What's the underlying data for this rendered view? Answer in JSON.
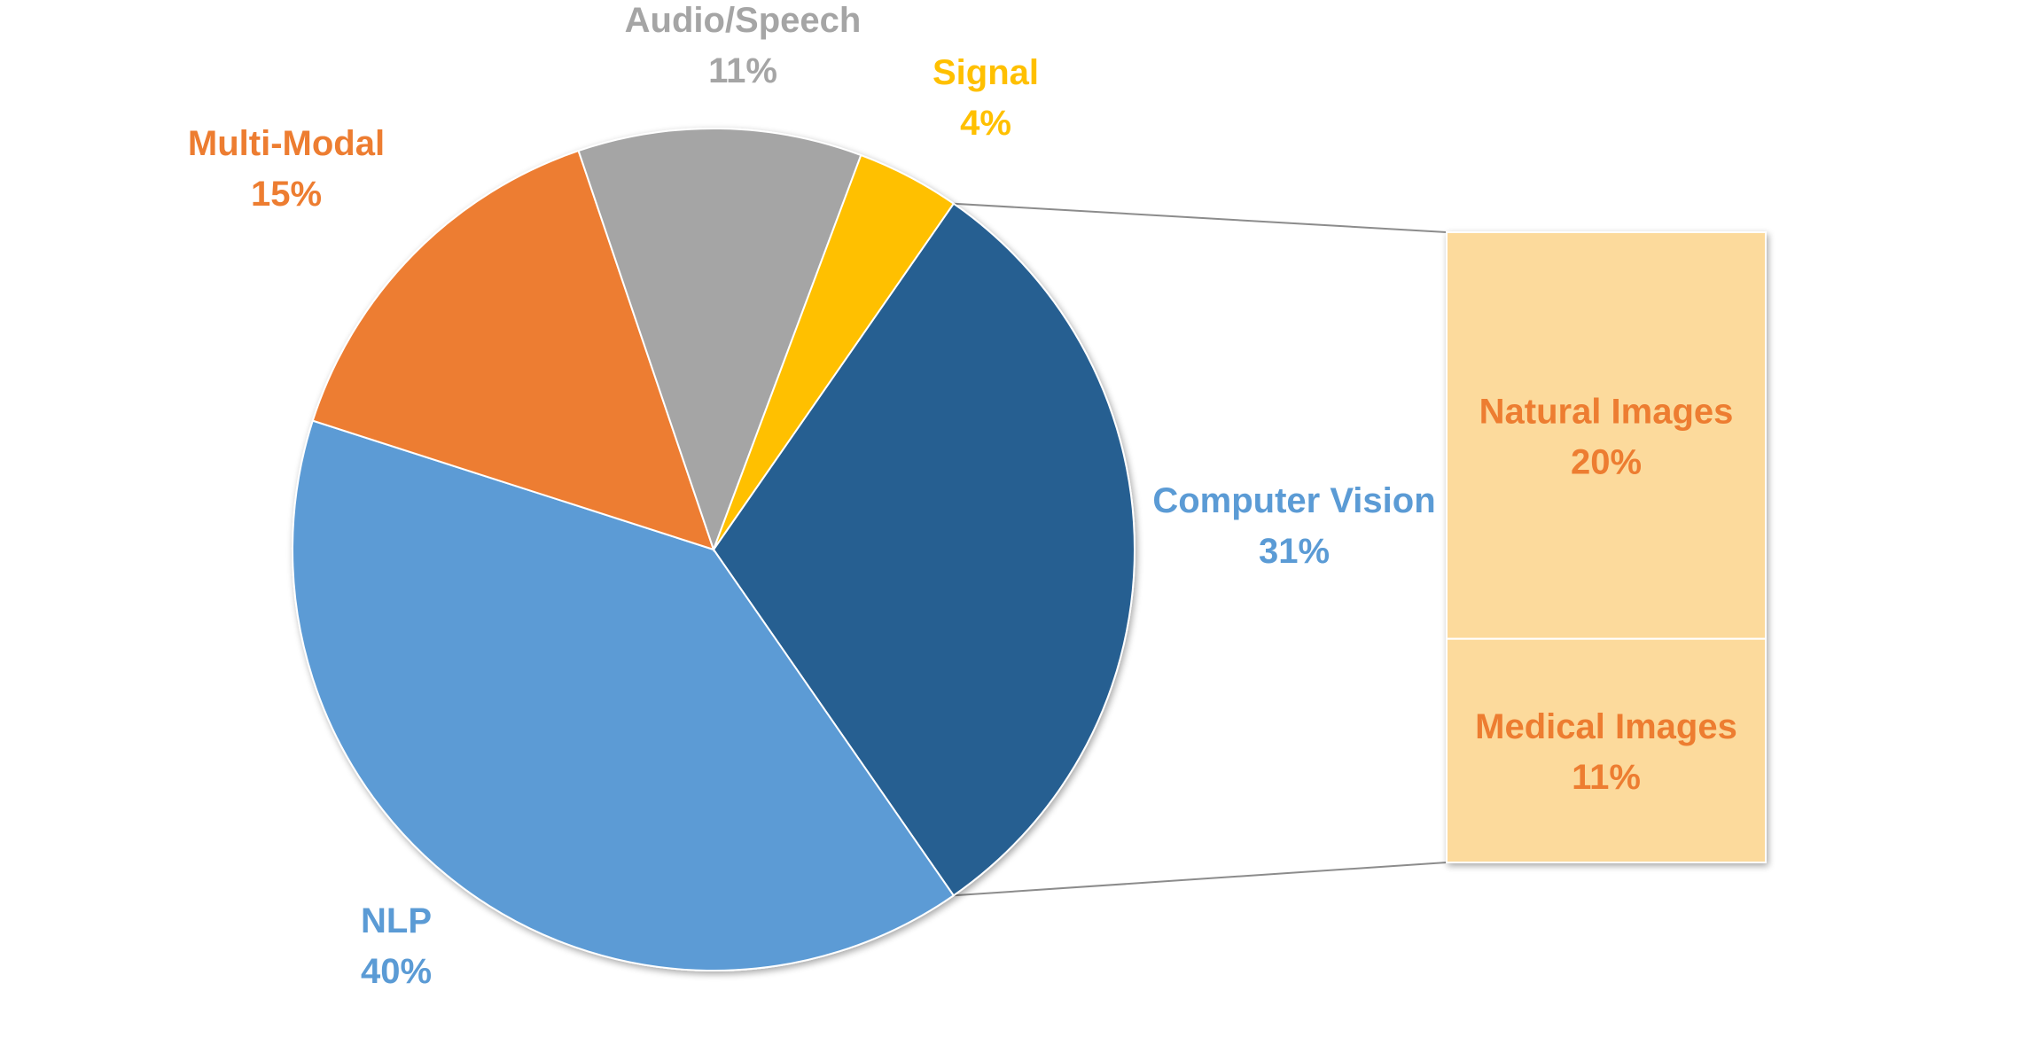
{
  "chart_data": {
    "type": "pie",
    "subtype": "bar-of-pie",
    "slices": [
      {
        "label": "Computer Vision",
        "value": 31,
        "display": "31%",
        "color": "#255E91"
      },
      {
        "label": "NLP",
        "value": 40,
        "display": "40%",
        "color": "#5B9BD5"
      },
      {
        "label": "Multi-Modal",
        "value": 15,
        "display": "15%",
        "color": "#ED7D31"
      },
      {
        "label": "Audio/Speech",
        "value": 11,
        "display": "11%",
        "color": "#A5A5A5"
      },
      {
        "label": "Signal",
        "value": 4,
        "display": "4%",
        "color": "#FFC000"
      }
    ],
    "breakout": {
      "parent": "Computer Vision",
      "color": "#FCDA9C",
      "label_color": "#ED7D31",
      "items": [
        {
          "label": "Natural Images",
          "value": 20,
          "display": "20%"
        },
        {
          "label": "Medical Images",
          "value": 11,
          "display": "11%"
        }
      ]
    },
    "label_colors": {
      "Computer Vision": "#5B9BD5",
      "NLP": "#5B9BD5",
      "Multi-Modal": "#ED7D31",
      "Audio/Speech": "#A5A5A5",
      "Signal": "#FFC000"
    },
    "legend": "none"
  }
}
